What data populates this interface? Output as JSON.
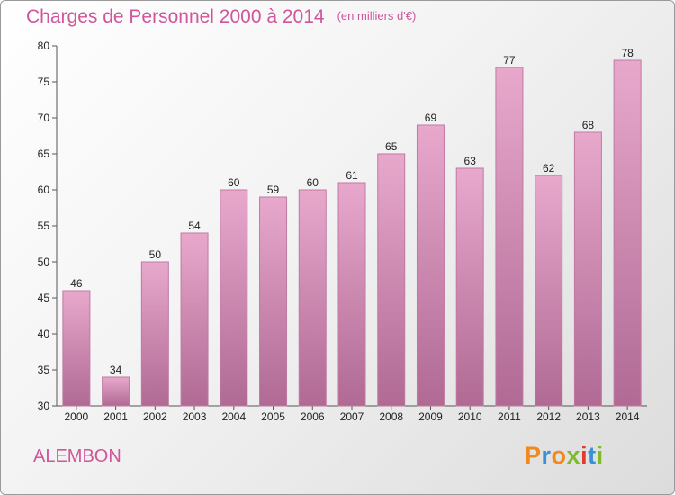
{
  "title": "Charges de Personnel 2000 à 2014",
  "subtitle": "(en milliers d'€)",
  "commune": "ALEMBON",
  "logo": {
    "text": "Proxiti",
    "colors": [
      "#f08a1e",
      "#3a8fd6",
      "#f08a1e",
      "#7dbb2a",
      "#e03a2e",
      "#3a8fd6",
      "#7dbb2a"
    ]
  },
  "chart_data": {
    "type": "bar",
    "categories": [
      "2000",
      "2001",
      "2002",
      "2003",
      "2004",
      "2005",
      "2006",
      "2007",
      "2008",
      "2009",
      "2010",
      "2011",
      "2012",
      "2013",
      "2014"
    ],
    "values": [
      46,
      34,
      50,
      54,
      60,
      59,
      60,
      61,
      65,
      69,
      63,
      77,
      62,
      68,
      78
    ],
    "ylim": [
      30,
      80
    ],
    "yticks": [
      30,
      35,
      40,
      45,
      50,
      55,
      60,
      65,
      70,
      75,
      80
    ],
    "bar_color": "#d98ab8",
    "grid": false
  }
}
